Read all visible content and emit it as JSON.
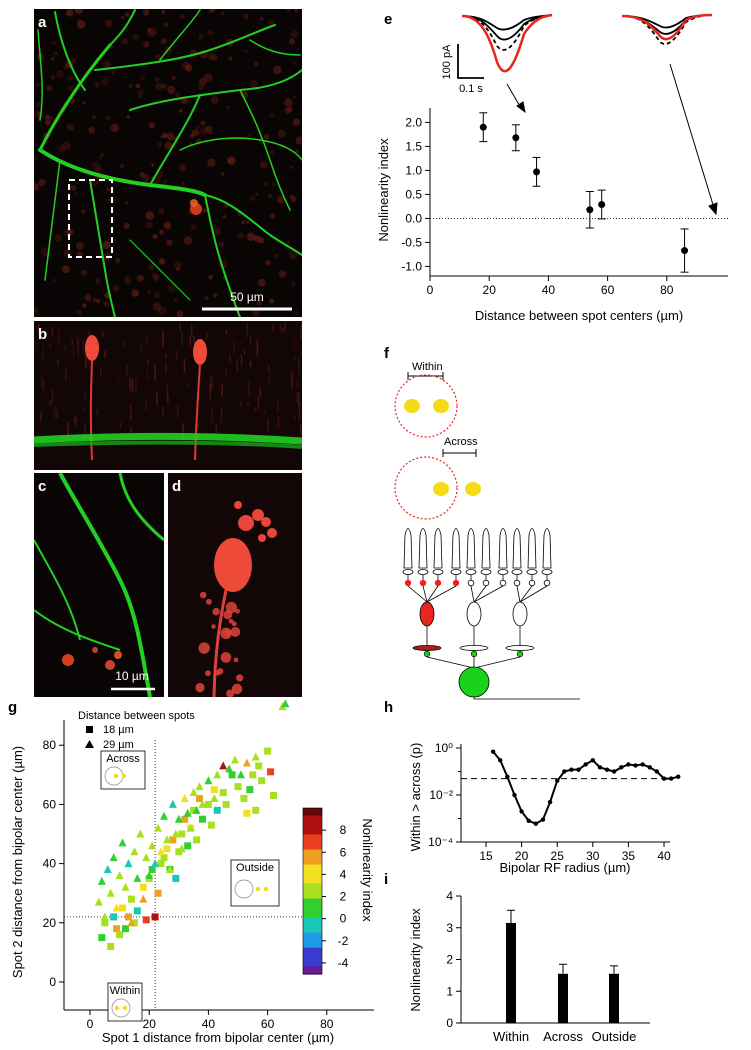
{
  "panels": {
    "a": {
      "label": "a",
      "scalebar": "50 µm"
    },
    "b": {
      "label": "b"
    },
    "c": {
      "label": "c",
      "scalebar": "10 µm"
    },
    "d": {
      "label": "d"
    },
    "e": {
      "label": "e",
      "scale_current": "100 pA",
      "scale_time": "0.1 s"
    },
    "f": {
      "label": "f",
      "within": "Within",
      "across": "Across"
    },
    "g": {
      "label": "g"
    },
    "h": {
      "label": "h"
    },
    "i": {
      "label": "i"
    }
  },
  "colors": {
    "red": "#e8261c",
    "green": "#1ad21a",
    "yellow": "#f5dc12",
    "black": "#000000"
  },
  "chart_data": [
    {
      "panel": "e",
      "type": "scatter",
      "xlabel": "Distance between spot centers (µm)",
      "ylabel": "Nonlinearity index",
      "xlim": [
        0,
        90
      ],
      "ylim": [
        -1.2,
        2.3
      ],
      "xticks": [
        0,
        20,
        40,
        60,
        80
      ],
      "yticks": [
        -1.0,
        -0.5,
        0.0,
        0.5,
        1.0,
        1.5,
        2.0
      ],
      "ytick_labels": [
        "-1.0",
        "-0.5",
        "0.0",
        "0.5",
        "1.0",
        "1.5",
        "2.0"
      ],
      "reference_line_y": 0,
      "x": [
        18,
        29,
        36,
        54,
        58,
        86
      ],
      "y": [
        1.9,
        1.68,
        0.97,
        0.18,
        0.29,
        -0.67
      ],
      "err": [
        0.3,
        0.27,
        0.3,
        0.38,
        0.3,
        0.45
      ]
    },
    {
      "panel": "g",
      "type": "scatter",
      "xlabel": "Spot 1 distance from bipolar center (µm)",
      "ylabel": "Spot 2 distance from bipolar center (µm)",
      "xlim": [
        -5,
        95
      ],
      "ylim": [
        -8,
        95
      ],
      "xticks": [
        0,
        20,
        40,
        60,
        80
      ],
      "yticks": [
        0,
        20,
        40,
        60,
        80
      ],
      "legend_title": "Distance between spots",
      "legend": [
        {
          "marker": "square",
          "label": "18 µm"
        },
        {
          "marker": "triangle",
          "label": "29 µm"
        }
      ],
      "threshold_lines": {
        "x": 22,
        "y": 22
      },
      "inset_labels": [
        "Across",
        "Outside",
        "Within"
      ],
      "colorbar": {
        "label": "Nonlinearity index",
        "min": -5,
        "max": 10,
        "ticks": [
          -4,
          -2,
          0,
          2,
          4,
          6,
          8
        ]
      },
      "series": [
        {
          "marker": "square",
          "points": [
            [
              4,
              15
            ],
            [
              5,
              20
            ],
            [
              7,
              12
            ],
            [
              8,
              22
            ],
            [
              9,
              18
            ],
            [
              10,
              16
            ],
            [
              11,
              25
            ],
            [
              12,
              18
            ],
            [
              13,
              22
            ],
            [
              14,
              28
            ],
            [
              15,
              20
            ],
            [
              16,
              24
            ],
            [
              18,
              32
            ],
            [
              19,
              21
            ],
            [
              20,
              35
            ],
            [
              21,
              38
            ],
            [
              22,
              22
            ],
            [
              23,
              30
            ],
            [
              24,
              40
            ],
            [
              25,
              42
            ],
            [
              26,
              45
            ],
            [
              27,
              38
            ],
            [
              28,
              48
            ],
            [
              29,
              35
            ],
            [
              30,
              44
            ],
            [
              31,
              50
            ],
            [
              32,
              55
            ],
            [
              33,
              46
            ],
            [
              34,
              52
            ],
            [
              35,
              58
            ],
            [
              36,
              48
            ],
            [
              37,
              62
            ],
            [
              38,
              55
            ],
            [
              40,
              60
            ],
            [
              41,
              53
            ],
            [
              42,
              65
            ],
            [
              43,
              58
            ],
            [
              45,
              64
            ],
            [
              46,
              60
            ],
            [
              48,
              70
            ],
            [
              50,
              66
            ],
            [
              52,
              62
            ],
            [
              53,
              57
            ],
            [
              54,
              65
            ],
            [
              55,
              70
            ],
            [
              56,
              58
            ],
            [
              57,
              73
            ],
            [
              58,
              68
            ],
            [
              60,
              78
            ],
            [
              61,
              71
            ],
            [
              62,
              63
            ]
          ],
          "values": [
            1,
            2,
            3,
            0,
            5,
            2,
            4,
            1,
            6,
            3,
            2,
            0,
            4,
            7,
            3,
            1,
            9,
            5,
            2,
            3,
            4,
            1,
            6,
            0,
            3,
            2,
            5,
            1,
            4,
            2,
            3,
            6,
            1,
            2,
            3,
            4,
            0,
            2,
            3,
            1,
            2,
            3,
            4,
            1,
            2,
            3,
            2,
            3,
            3,
            7,
            2
          ]
        },
        {
          "marker": "triangle",
          "points": [
            [
              3,
              27
            ],
            [
              4,
              34
            ],
            [
              5,
              22
            ],
            [
              6,
              38
            ],
            [
              7,
              30
            ],
            [
              8,
              42
            ],
            [
              9,
              25
            ],
            [
              10,
              36
            ],
            [
              11,
              47
            ],
            [
              12,
              32
            ],
            [
              13,
              40
            ],
            [
              14,
              20
            ],
            [
              15,
              44
            ],
            [
              16,
              35
            ],
            [
              17,
              50
            ],
            [
              18,
              28
            ],
            [
              19,
              42
            ],
            [
              20,
              36
            ],
            [
              21,
              46
            ],
            [
              22,
              40
            ],
            [
              23,
              52
            ],
            [
              24,
              44
            ],
            [
              25,
              56
            ],
            [
              26,
              48
            ],
            [
              27,
              38
            ],
            [
              28,
              60
            ],
            [
              29,
              50
            ],
            [
              30,
              55
            ],
            [
              31,
              45
            ],
            [
              32,
              62
            ],
            [
              33,
              57
            ],
            [
              34,
              52
            ],
            [
              35,
              64
            ],
            [
              36,
              58
            ],
            [
              37,
              66
            ],
            [
              38,
              60
            ],
            [
              40,
              68
            ],
            [
              42,
              62
            ],
            [
              43,
              70
            ],
            [
              45,
              73
            ],
            [
              47,
              72
            ],
            [
              49,
              75
            ],
            [
              51,
              70
            ],
            [
              53,
              74
            ],
            [
              56,
              76
            ],
            [
              65,
              93
            ],
            [
              66,
              94
            ]
          ],
          "values": [
            2,
            1,
            3,
            0,
            2,
            1,
            4,
            2,
            1,
            3,
            0,
            5,
            2,
            1,
            3,
            6,
            2,
            1,
            3,
            0,
            2,
            4,
            1,
            3,
            2,
            0,
            3,
            1,
            2,
            4,
            1,
            3,
            2,
            1,
            3,
            2,
            1,
            3,
            2,
            8,
            1,
            2,
            1,
            6,
            2,
            2,
            1
          ]
        }
      ]
    },
    {
      "panel": "h",
      "type": "line",
      "xlabel": "Bipolar RF radius (µm)",
      "ylabel": "Within > across (p)",
      "yscale": "log",
      "xlim": [
        14,
        43
      ],
      "ylim": [
        0.0001,
        1
      ],
      "xticks": [
        15,
        20,
        25,
        30,
        35,
        40
      ],
      "ytick_labels": [
        "10⁰",
        "10⁻²",
        "10⁻⁴"
      ],
      "threshold_y": 0.05,
      "x": [
        16,
        17,
        18,
        19,
        20,
        21,
        22,
        23,
        24,
        25,
        26,
        27,
        28,
        29,
        30,
        31,
        32,
        33,
        34,
        35,
        36,
        37,
        38,
        39,
        40,
        41,
        42
      ],
      "y": [
        0.7,
        0.3,
        0.06,
        0.01,
        0.002,
        0.0008,
        0.0006,
        0.0009,
        0.005,
        0.04,
        0.1,
        0.12,
        0.12,
        0.2,
        0.3,
        0.15,
        0.12,
        0.1,
        0.15,
        0.2,
        0.18,
        0.2,
        0.15,
        0.1,
        0.05,
        0.05,
        0.06
      ]
    },
    {
      "panel": "i",
      "type": "bar",
      "ylabel": "Nonlinearity index",
      "ylim": [
        0,
        4
      ],
      "yticks": [
        0,
        1,
        2,
        3,
        4
      ],
      "categories": [
        "Within",
        "Across",
        "Outside"
      ],
      "values": [
        3.15,
        1.55,
        1.55
      ],
      "err": [
        0.4,
        0.3,
        0.25
      ]
    }
  ]
}
